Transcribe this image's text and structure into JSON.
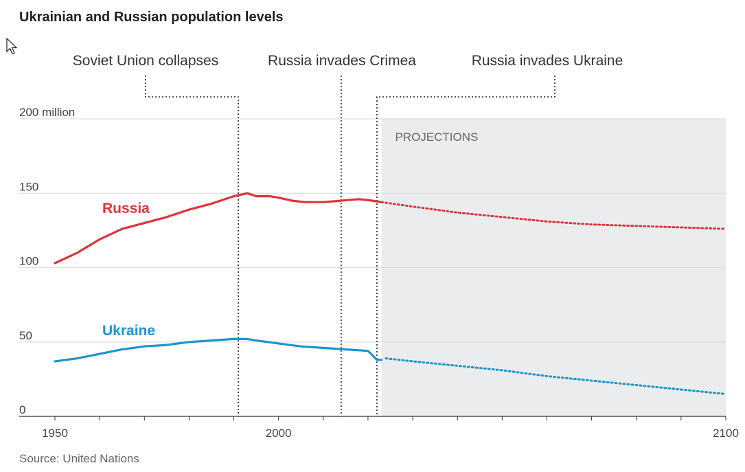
{
  "chart_data": {
    "type": "line",
    "title": "Ukrainian and Russian population levels",
    "source": "Source: United Nations",
    "y_unit_label": "200 million",
    "y_ticks": [
      {
        "value": 0,
        "label": "0"
      },
      {
        "value": 50,
        "label": "50"
      },
      {
        "value": 100,
        "label": "100"
      },
      {
        "value": 150,
        "label": "150"
      },
      {
        "value": 200,
        "label": "200 million"
      }
    ],
    "x_ticks": [
      {
        "value": 1950,
        "label": "1950"
      },
      {
        "value": 2000,
        "label": "2000"
      },
      {
        "value": 2100,
        "label": "2100"
      }
    ],
    "xlim": [
      1950,
      2100
    ],
    "ylim": [
      0,
      200
    ],
    "projection": {
      "label": "PROJECTIONS",
      "start_year": 2023
    },
    "annotations": [
      {
        "text": "Soviet Union collapses",
        "year": 1991
      },
      {
        "text": "Russia invades Crimea",
        "year": 2014
      },
      {
        "text": "Russia invades Ukraine",
        "year": 2022
      }
    ],
    "series": [
      {
        "name": "Russia",
        "color": "#e0333b",
        "historical": [
          [
            1950,
            103
          ],
          [
            1955,
            110
          ],
          [
            1960,
            119
          ],
          [
            1965,
            126
          ],
          [
            1970,
            130
          ],
          [
            1975,
            134
          ],
          [
            1980,
            139
          ],
          [
            1985,
            143
          ],
          [
            1990,
            148
          ],
          [
            1993,
            150
          ],
          [
            1995,
            148
          ],
          [
            1998,
            148
          ],
          [
            2000,
            147
          ],
          [
            2003,
            145
          ],
          [
            2006,
            144
          ],
          [
            2010,
            144
          ],
          [
            2014,
            145
          ],
          [
            2018,
            146
          ],
          [
            2021,
            145
          ],
          [
            2023,
            144
          ]
        ],
        "projected": [
          [
            2023,
            144
          ],
          [
            2030,
            141
          ],
          [
            2040,
            137
          ],
          [
            2050,
            134
          ],
          [
            2060,
            131
          ],
          [
            2070,
            129
          ],
          [
            2080,
            128
          ],
          [
            2090,
            127
          ],
          [
            2100,
            126
          ]
        ]
      },
      {
        "name": "Ukraine",
        "color": "#1b94d2",
        "historical": [
          [
            1950,
            37
          ],
          [
            1955,
            39
          ],
          [
            1960,
            42
          ],
          [
            1965,
            45
          ],
          [
            1970,
            47
          ],
          [
            1975,
            48
          ],
          [
            1980,
            50
          ],
          [
            1985,
            51
          ],
          [
            1990,
            52
          ],
          [
            1993,
            52
          ],
          [
            1995,
            51
          ],
          [
            2000,
            49
          ],
          [
            2005,
            47
          ],
          [
            2010,
            46
          ],
          [
            2015,
            45
          ],
          [
            2020,
            44
          ],
          [
            2021,
            41
          ],
          [
            2022,
            38
          ],
          [
            2023,
            38
          ]
        ],
        "projected": [
          [
            2024,
            39
          ],
          [
            2030,
            37
          ],
          [
            2040,
            34
          ],
          [
            2050,
            31
          ],
          [
            2060,
            27
          ],
          [
            2070,
            24
          ],
          [
            2080,
            21
          ],
          [
            2090,
            18
          ],
          [
            2100,
            15
          ]
        ]
      }
    ]
  }
}
